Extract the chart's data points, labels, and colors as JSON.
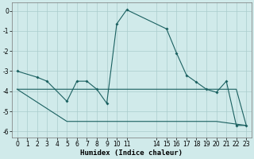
{
  "xlabel": "Humidex (Indice chaleur)",
  "bg_color": "#d0eaea",
  "grid_color": "#aacccc",
  "line_color": "#1a6060",
  "xlim": [
    -0.5,
    23.5
  ],
  "ylim": [
    -6.3,
    0.4
  ],
  "yticks": [
    0,
    -1,
    -2,
    -3,
    -4,
    -5,
    -6
  ],
  "xticks": [
    0,
    1,
    2,
    3,
    4,
    5,
    6,
    7,
    8,
    9,
    10,
    11,
    14,
    15,
    16,
    17,
    18,
    19,
    20,
    21,
    22,
    23
  ],
  "curve1_x": [
    0,
    2,
    3,
    5,
    6,
    7,
    8,
    9,
    10,
    11,
    15,
    16,
    17,
    18,
    19,
    20,
    21,
    22,
    23
  ],
  "curve1_y": [
    -3.0,
    -3.3,
    -3.5,
    -4.5,
    -3.5,
    -3.5,
    -3.9,
    -4.6,
    -0.65,
    0.05,
    -0.9,
    -2.1,
    -3.2,
    -3.55,
    -3.9,
    -4.05,
    -3.5,
    -5.7,
    -5.7
  ],
  "curve2_x": [
    0,
    5,
    14,
    20,
    23
  ],
  "curve2_y": [
    -3.9,
    -5.5,
    -5.5,
    -5.5,
    -5.7
  ],
  "curve3_x": [
    0,
    5,
    9,
    14,
    20,
    21,
    22,
    23
  ],
  "curve3_y": [
    -3.9,
    -3.9,
    -3.9,
    -3.9,
    -3.9,
    -3.9,
    -3.9,
    -5.7
  ],
  "marker_x1": [
    0,
    2,
    3,
    5,
    6,
    7,
    8,
    9,
    10,
    11,
    15,
    16,
    17,
    18,
    19,
    20,
    21,
    22,
    23
  ],
  "marker_y1": [
    -3.0,
    -3.3,
    -3.5,
    -4.5,
    -3.5,
    -3.5,
    -3.9,
    -4.6,
    -0.65,
    0.05,
    -0.9,
    -2.1,
    -3.2,
    -3.55,
    -3.9,
    -4.05,
    -3.5,
    -5.7,
    -5.7
  ]
}
